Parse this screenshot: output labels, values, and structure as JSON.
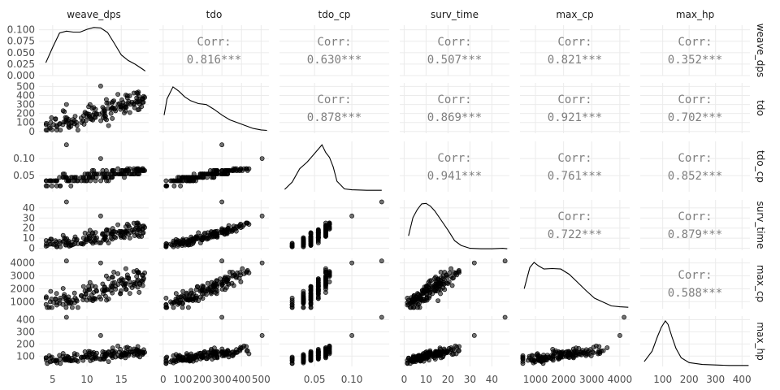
{
  "chart_data": {
    "type": "scatter-matrix",
    "variables": [
      "weave_dps",
      "tdo",
      "tdo_cp",
      "surv_time",
      "max_cp",
      "max_hp"
    ],
    "corr_label": "Corr:",
    "correlations": {
      "0_1": "0.816***",
      "0_2": "0.630***",
      "0_3": "0.507***",
      "0_4": "0.821***",
      "0_5": "0.352***",
      "1_2": "0.878***",
      "1_3": "0.869***",
      "1_4": "0.921***",
      "1_5": "0.702***",
      "2_3": "0.941***",
      "2_4": "0.761***",
      "2_5": "0.852***",
      "3_4": "0.722***",
      "3_5": "0.879***",
      "4_5": "0.588***"
    },
    "ranges": [
      [
        3,
        19
      ],
      [
        -20,
        540
      ],
      [
        0.003,
        0.15
      ],
      [
        -2,
        48
      ],
      [
        450,
        4350
      ],
      [
        15,
        430
      ]
    ],
    "ticks": [
      [
        5,
        10,
        15
      ],
      [
        0,
        100,
        200,
        300,
        400,
        500
      ],
      [
        0.05,
        0.1
      ],
      [
        0,
        10,
        20,
        30,
        40
      ],
      [
        1000,
        2000,
        3000,
        4000
      ],
      [
        100,
        200,
        300,
        400
      ]
    ],
    "tick_labels": [
      [
        "5",
        "10",
        "15"
      ],
      [
        "0",
        "100",
        "200",
        "300",
        "400",
        "500"
      ],
      [
        "0.05",
        "0.10"
      ],
      [
        "0",
        "10",
        "20",
        "30",
        "40"
      ],
      [
        "1000",
        "2000",
        "3000",
        "4000"
      ],
      [
        "100",
        "200",
        "300",
        "400"
      ]
    ],
    "y_ticks_first_row": [
      0.0,
      0.025,
      0.05,
      0.075,
      0.1
    ],
    "y_tick_labels_first_row": [
      "0.000",
      "0.025",
      "0.050",
      "0.075",
      "0.100"
    ],
    "y_range_first_row": [
      0,
      0.11
    ],
    "y_tick_labels": [
      [
        "0.000",
        "0.025",
        "0.050",
        "0.075",
        "0.100"
      ],
      [
        "0",
        "100",
        "200",
        "300",
        "400",
        "500"
      ],
      [
        "0.05",
        "0.10"
      ],
      [
        "0",
        "10",
        "20",
        "30",
        "40"
      ],
      [
        "1000",
        "2000",
        "3000",
        "4000"
      ],
      [
        "100",
        "200",
        "300",
        "400"
      ]
    ],
    "density_curves": [
      [
        [
          4,
          0.028
        ],
        [
          5,
          0.062
        ],
        [
          6,
          0.093
        ],
        [
          7,
          0.097
        ],
        [
          8,
          0.095
        ],
        [
          9,
          0.095
        ],
        [
          10,
          0.101
        ],
        [
          11,
          0.105
        ],
        [
          12,
          0.104
        ],
        [
          13,
          0.094
        ],
        [
          14,
          0.07
        ],
        [
          15,
          0.045
        ],
        [
          16,
          0.033
        ],
        [
          17,
          0.025
        ],
        [
          18,
          0.015
        ],
        [
          18.5,
          0.01
        ]
      ],
      [
        [
          5,
          0.38
        ],
        [
          20,
          0.72
        ],
        [
          50,
          0.97
        ],
        [
          80,
          0.88
        ],
        [
          110,
          0.76
        ],
        [
          140,
          0.68
        ],
        [
          180,
          0.62
        ],
        [
          220,
          0.6
        ],
        [
          260,
          0.5
        ],
        [
          300,
          0.38
        ],
        [
          340,
          0.28
        ],
        [
          380,
          0.22
        ],
        [
          420,
          0.16
        ],
        [
          460,
          0.1
        ],
        [
          500,
          0.07
        ],
        [
          530,
          0.06
        ]
      ],
      [
        [
          0.01,
          0.05
        ],
        [
          0.02,
          0.2
        ],
        [
          0.03,
          0.48
        ],
        [
          0.04,
          0.62
        ],
        [
          0.05,
          0.8
        ],
        [
          0.06,
          0.98
        ],
        [
          0.065,
          0.82
        ],
        [
          0.07,
          0.72
        ],
        [
          0.075,
          0.52
        ],
        [
          0.08,
          0.22
        ],
        [
          0.09,
          0.06
        ],
        [
          0.1,
          0.04
        ],
        [
          0.12,
          0.03
        ],
        [
          0.14,
          0.03
        ]
      ],
      [
        [
          2,
          0.3
        ],
        [
          4,
          0.68
        ],
        [
          6,
          0.85
        ],
        [
          8,
          0.97
        ],
        [
          10,
          0.98
        ],
        [
          12,
          0.92
        ],
        [
          14,
          0.82
        ],
        [
          17,
          0.62
        ],
        [
          20,
          0.42
        ],
        [
          23,
          0.2
        ],
        [
          26,
          0.1
        ],
        [
          30,
          0.04
        ],
        [
          35,
          0.03
        ],
        [
          40,
          0.03
        ],
        [
          45,
          0.04
        ],
        [
          47,
          0.03
        ]
      ],
      [
        [
          600,
          0.42
        ],
        [
          800,
          0.86
        ],
        [
          950,
          0.97
        ],
        [
          1100,
          0.9
        ],
        [
          1300,
          0.83
        ],
        [
          1600,
          0.84
        ],
        [
          1900,
          0.83
        ],
        [
          2200,
          0.72
        ],
        [
          2500,
          0.55
        ],
        [
          2800,
          0.38
        ],
        [
          3100,
          0.22
        ],
        [
          3400,
          0.14
        ],
        [
          3700,
          0.06
        ],
        [
          4000,
          0.04
        ],
        [
          4300,
          0.03
        ]
      ],
      [
        [
          30,
          0.1
        ],
        [
          60,
          0.32
        ],
        [
          80,
          0.62
        ],
        [
          95,
          0.82
        ],
        [
          110,
          0.95
        ],
        [
          120,
          0.88
        ],
        [
          135,
          0.62
        ],
        [
          150,
          0.38
        ],
        [
          170,
          0.18
        ],
        [
          200,
          0.08
        ],
        [
          250,
          0.04
        ],
        [
          300,
          0.03
        ],
        [
          350,
          0.02
        ],
        [
          400,
          0.02
        ],
        [
          425,
          0.02
        ]
      ]
    ],
    "n_points": 150,
    "point_color": "#333333",
    "axes_note": "variables on both axes"
  }
}
